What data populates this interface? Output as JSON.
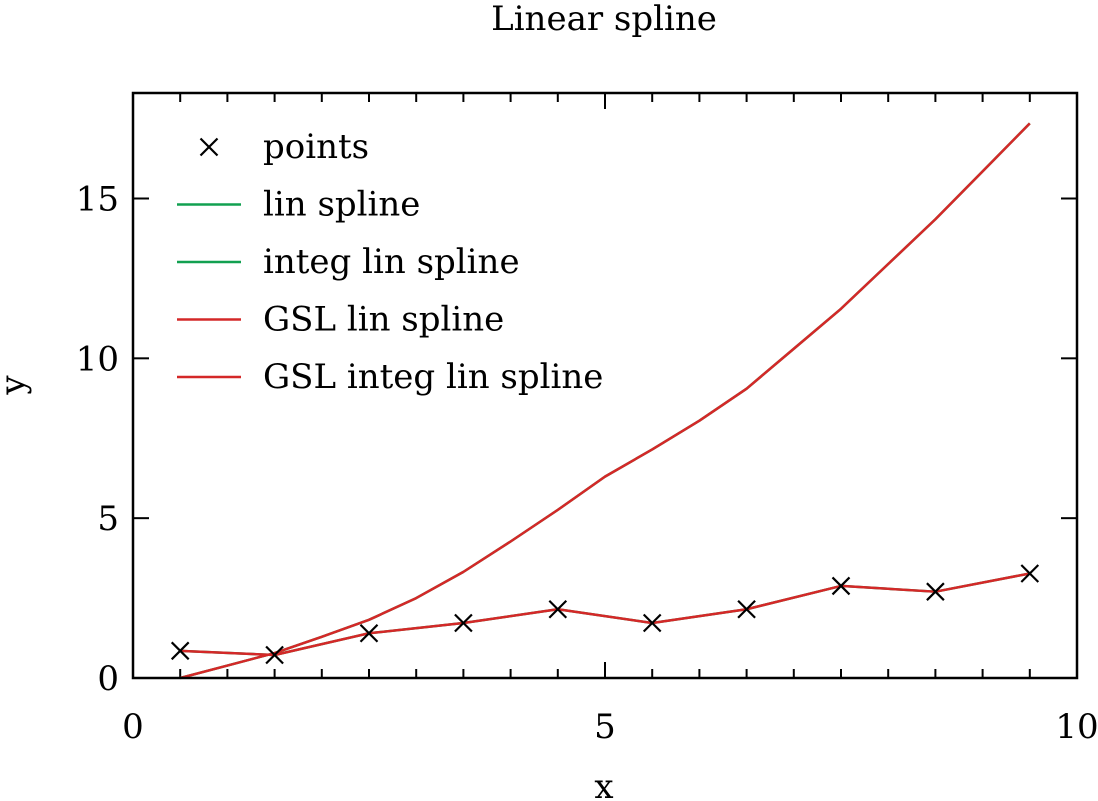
{
  "chart_data": {
    "type": "line",
    "title": "Linear spline",
    "xlabel": "x",
    "ylabel": "y",
    "xlim": [
      0,
      10
    ],
    "ylim": [
      0,
      18.3
    ],
    "xticks": [
      0,
      5,
      10
    ],
    "yticks": [
      0,
      5,
      10,
      15
    ],
    "x_minor_step": 0.5,
    "y_minor_step": 5,
    "grid": false,
    "legend_position": "top-left",
    "series": [
      {
        "name": "points",
        "kind": "markers",
        "marker": "x",
        "color": "#000000",
        "x": [
          0.5,
          1.5,
          2.5,
          3.5,
          4.5,
          5.5,
          6.5,
          7.5,
          8.5,
          9.5
        ],
        "y": [
          0.85,
          0.72,
          1.4,
          1.72,
          2.15,
          1.72,
          2.15,
          2.88,
          2.7,
          3.27
        ]
      },
      {
        "name": "lin spline",
        "kind": "line",
        "color": "#11a050",
        "x": [
          0.5,
          1.5,
          2.5,
          3.5,
          4.5,
          5.5,
          6.5,
          7.5,
          8.5,
          9.5
        ],
        "y": [
          0.85,
          0.72,
          1.4,
          1.72,
          2.15,
          1.72,
          2.15,
          2.88,
          2.7,
          3.27
        ]
      },
      {
        "name": "integ lin spline",
        "kind": "line",
        "color": "#11a050",
        "x": [
          0.5,
          1.0,
          1.5,
          2.0,
          2.5,
          3.0,
          3.5,
          4.0,
          4.5,
          5.0,
          5.5,
          6.0,
          6.5,
          7.0,
          7.5,
          8.0,
          8.5,
          9.0,
          9.5
        ],
        "y": [
          0,
          0.39,
          0.78,
          1.29,
          1.82,
          2.5,
          3.32,
          4.27,
          5.26,
          6.3,
          7.15,
          8.05,
          9.05,
          10.3,
          11.55,
          12.95,
          14.35,
          15.85,
          17.35
        ]
      },
      {
        "name": "GSL lin spline",
        "kind": "line",
        "color": "#d42828",
        "x": [
          0.5,
          1.5,
          2.5,
          3.5,
          4.5,
          5.5,
          6.5,
          7.5,
          8.5,
          9.5
        ],
        "y": [
          0.85,
          0.72,
          1.4,
          1.72,
          2.15,
          1.72,
          2.15,
          2.88,
          2.7,
          3.27
        ]
      },
      {
        "name": "GSL integ lin spline",
        "kind": "line",
        "color": "#d42828",
        "x": [
          0.5,
          1.0,
          1.5,
          2.0,
          2.5,
          3.0,
          3.5,
          4.0,
          4.5,
          5.0,
          5.5,
          6.0,
          6.5,
          7.0,
          7.5,
          8.0,
          8.5,
          9.0,
          9.5
        ],
        "y": [
          0,
          0.39,
          0.78,
          1.29,
          1.82,
          2.5,
          3.32,
          4.27,
          5.26,
          6.3,
          7.15,
          8.05,
          9.05,
          10.3,
          11.55,
          12.95,
          14.35,
          15.85,
          17.35
        ]
      }
    ]
  }
}
